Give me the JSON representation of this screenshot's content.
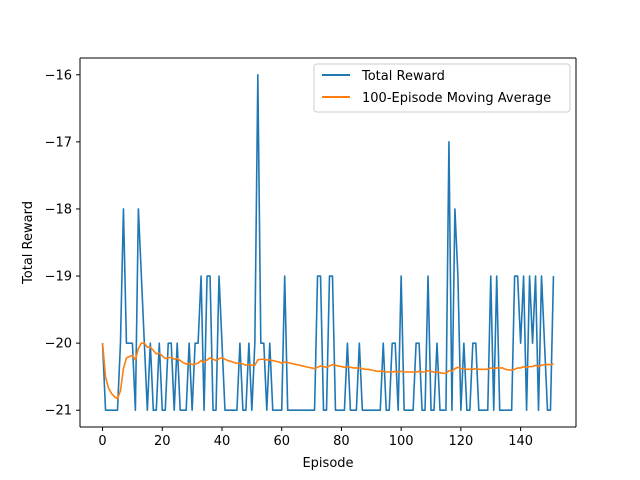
{
  "chart_data": {
    "type": "line",
    "xlabel": "Episode",
    "ylabel": "Total Reward",
    "xlim": [
      -7.55,
      158.55
    ],
    "ylim": [
      -21.25,
      -15.75
    ],
    "xticks": [
      0,
      20,
      40,
      60,
      80,
      100,
      120,
      140
    ],
    "yticks": [
      -21,
      -20,
      -19,
      -18,
      -17,
      -16
    ],
    "legend_position": "top-right",
    "grid": false,
    "series": [
      {
        "name": "Total Reward",
        "color": "#1f77b4",
        "values": [
          -20,
          -21,
          -21,
          -21,
          -21,
          -21,
          -20,
          -18,
          -20,
          -20,
          -20,
          -21,
          -18,
          -19,
          -20,
          -21,
          -20,
          -21,
          -21,
          -20,
          -21,
          -21,
          -20,
          -20,
          -21,
          -20,
          -21,
          -21,
          -21,
          -20,
          -21,
          -20,
          -20,
          -19,
          -21,
          -19,
          -19,
          -21,
          -21,
          -19,
          -20,
          -21,
          -21,
          -21,
          -21,
          -21,
          -20,
          -21,
          -21,
          -20,
          -21,
          -20,
          -16,
          -20,
          -20,
          -21,
          -20,
          -21,
          -21,
          -21,
          -21,
          -19,
          -21,
          -21,
          -21,
          -21,
          -21,
          -21,
          -21,
          -21,
          -21,
          -21,
          -19,
          -19,
          -21,
          -21,
          -19,
          -19,
          -21,
          -21,
          -21,
          -21,
          -20,
          -21,
          -21,
          -21,
          -20,
          -21,
          -21,
          -21,
          -21,
          -21,
          -21,
          -21,
          -20,
          -21,
          -21,
          -20,
          -20,
          -21,
          -19,
          -21,
          -21,
          -21,
          -21,
          -20,
          -20,
          -21,
          -21,
          -19,
          -21,
          -21,
          -20,
          -21,
          -21,
          -21,
          -17,
          -21,
          -18,
          -19,
          -21,
          -20,
          -21,
          -21,
          -20,
          -20,
          -21,
          -21,
          -21,
          -21,
          -19,
          -21,
          -19,
          -21,
          -21,
          -21,
          -21,
          -21,
          -19,
          -19,
          -20,
          -19,
          -21,
          -19,
          -20,
          -19,
          -21,
          -19,
          -20,
          -21,
          -21,
          -19
        ]
      },
      {
        "name": "100-Episode Moving Average",
        "color": "#ff7f0e",
        "values": [
          -20,
          -20.5,
          -20.67,
          -20.75,
          -20.8,
          -20.83,
          -20.71,
          -20.38,
          -20.22,
          -20.2,
          -20.18,
          -20.25,
          -20.08,
          -20,
          -20,
          -20.06,
          -20.06,
          -20.11,
          -20.16,
          -20.15,
          -20.19,
          -20.23,
          -20.22,
          -20.21,
          -20.24,
          -20.23,
          -20.26,
          -20.29,
          -20.31,
          -20.3,
          -20.32,
          -20.31,
          -20.3,
          -20.26,
          -20.29,
          -20.25,
          -20.22,
          -20.24,
          -20.26,
          -20.23,
          -20.22,
          -20.24,
          -20.26,
          -20.27,
          -20.29,
          -20.3,
          -20.3,
          -20.31,
          -20.33,
          -20.32,
          -20.33,
          -20.33,
          -20.25,
          -20.24,
          -20.24,
          -20.25,
          -20.25,
          -20.26,
          -20.27,
          -20.28,
          -20.3,
          -20.28,
          -20.29,
          -20.3,
          -20.31,
          -20.32,
          -20.33,
          -20.34,
          -20.35,
          -20.36,
          -20.37,
          -20.38,
          -20.36,
          -20.34,
          -20.35,
          -20.36,
          -20.34,
          -20.32,
          -20.33,
          -20.34,
          -20.35,
          -20.36,
          -20.35,
          -20.36,
          -20.37,
          -20.37,
          -20.37,
          -20.38,
          -20.39,
          -20.39,
          -20.4,
          -20.41,
          -20.42,
          -20.42,
          -20.42,
          -20.43,
          -20.43,
          -20.43,
          -20.42,
          -20.43,
          -20.42,
          -20.43,
          -20.43,
          -20.43,
          -20.43,
          -20.43,
          -20.42,
          -20.43,
          -20.43,
          -20.41,
          -20.42,
          -20.43,
          -20.43,
          -20.44,
          -20.45,
          -20.45,
          -20.41,
          -20.42,
          -20.38,
          -20.36,
          -20.38,
          -20.38,
          -20.39,
          -20.39,
          -20.39,
          -20.38,
          -20.39,
          -20.39,
          -20.39,
          -20.39,
          -20.37,
          -20.38,
          -20.37,
          -20.37,
          -20.37,
          -20.39,
          -20.4,
          -20.4,
          -20.39,
          -20.37,
          -20.37,
          -20.35,
          -20.36,
          -20.35,
          -20.35,
          -20.33,
          -20.35,
          -20.33,
          -20.32,
          -20.32,
          -20.32,
          -20.31
        ]
      }
    ]
  }
}
